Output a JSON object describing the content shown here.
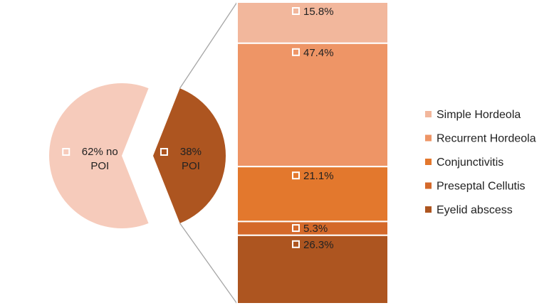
{
  "chart_data": {
    "type": "bar-of-pie",
    "pie": {
      "slices": [
        {
          "value": 62,
          "label_line1": "62% no",
          "label_line2": "POI",
          "color": "#F6CBBB"
        },
        {
          "value": 38,
          "label_line1": "38%",
          "label_line2": "POI",
          "color": "#AD5520"
        }
      ]
    },
    "bar": {
      "parent_slice": "38% POI",
      "segments": [
        {
          "name": "Simple Hordeola",
          "value": 15.8,
          "label": "15.8%",
          "color": "#F2B79C"
        },
        {
          "name": "Recurrent Hordeola",
          "value": 47.4,
          "label": "47.4%",
          "color": "#EE9566"
        },
        {
          "name": "Conjunctivitis",
          "value": 21.1,
          "label": "21.1%",
          "color": "#E3782D"
        },
        {
          "name": "Preseptal Cellutis",
          "value": 5.3,
          "label": "5.3%",
          "color": "#D4692A"
        },
        {
          "name": "Eyelid abscess",
          "value": 26.3,
          "label": "26.3%",
          "color": "#AD5520"
        }
      ]
    },
    "legend": {
      "placement": "right",
      "items": [
        "Simple Hordeola",
        "Recurrent Hordeola",
        "Conjunctivitis",
        "Preseptal Cellutis",
        "Eyelid abscess"
      ]
    }
  }
}
